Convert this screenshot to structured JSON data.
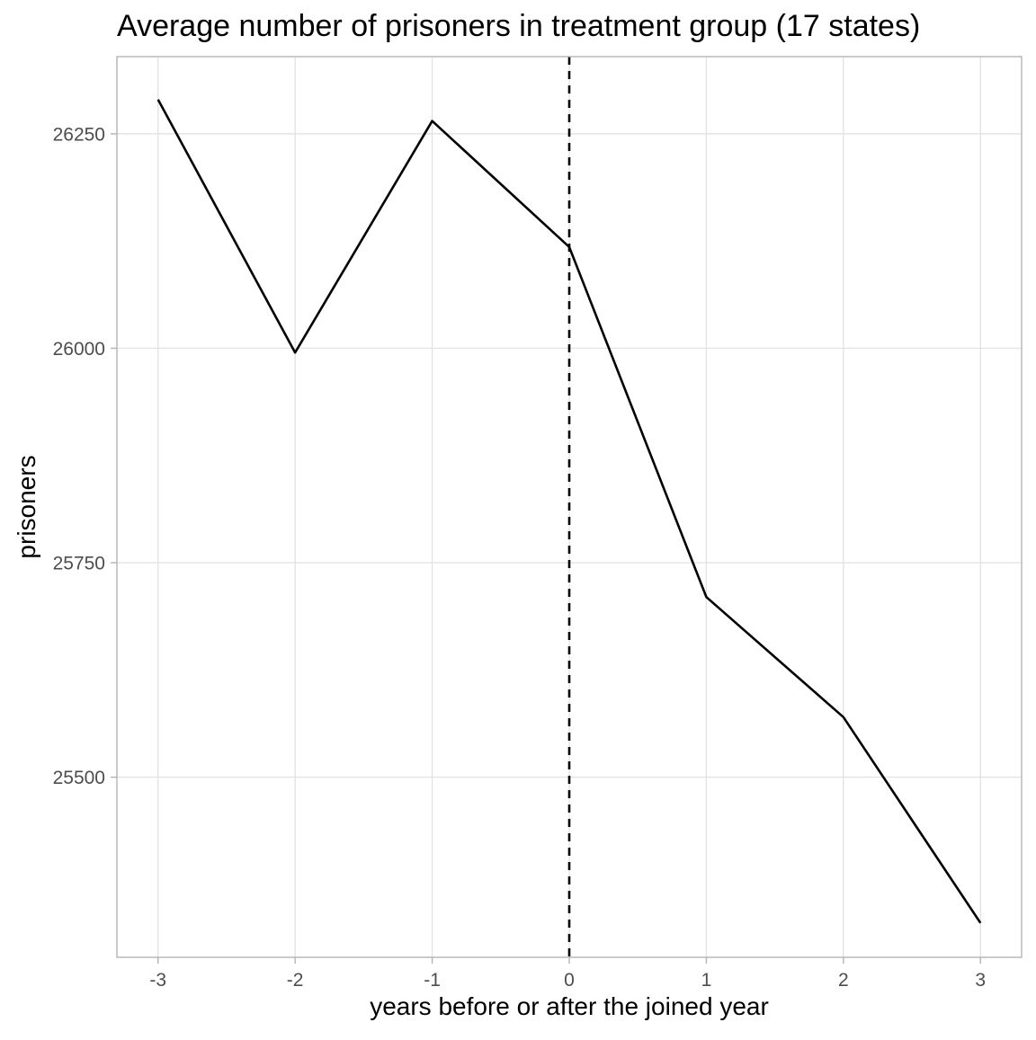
{
  "chart_data": {
    "type": "line",
    "title": "Average number of prisoners in treatment group (17 states)",
    "xlabel": "years before or after the joined year",
    "ylabel": "prisoners",
    "x": [
      -3,
      -2,
      -1,
      0,
      1,
      2,
      3
    ],
    "x_tick_labels": [
      "-3",
      "-2",
      "-1",
      "0",
      "1",
      "2",
      "3"
    ],
    "y_ticks": [
      25500,
      25750,
      26000,
      26250
    ],
    "y_tick_labels": [
      "25500",
      "25750",
      "26000",
      "26250"
    ],
    "xlim": [
      -3.3,
      3.3
    ],
    "ylim": [
      25290,
      26340
    ],
    "grid": true,
    "series": [
      {
        "values": [
          26290,
          25995,
          26265,
          26118,
          25710,
          25570,
          25330
        ],
        "color": "#000000"
      }
    ],
    "reference_line": {
      "orientation": "vertical",
      "x": 0,
      "style": "dashed",
      "color": "#000000"
    }
  }
}
